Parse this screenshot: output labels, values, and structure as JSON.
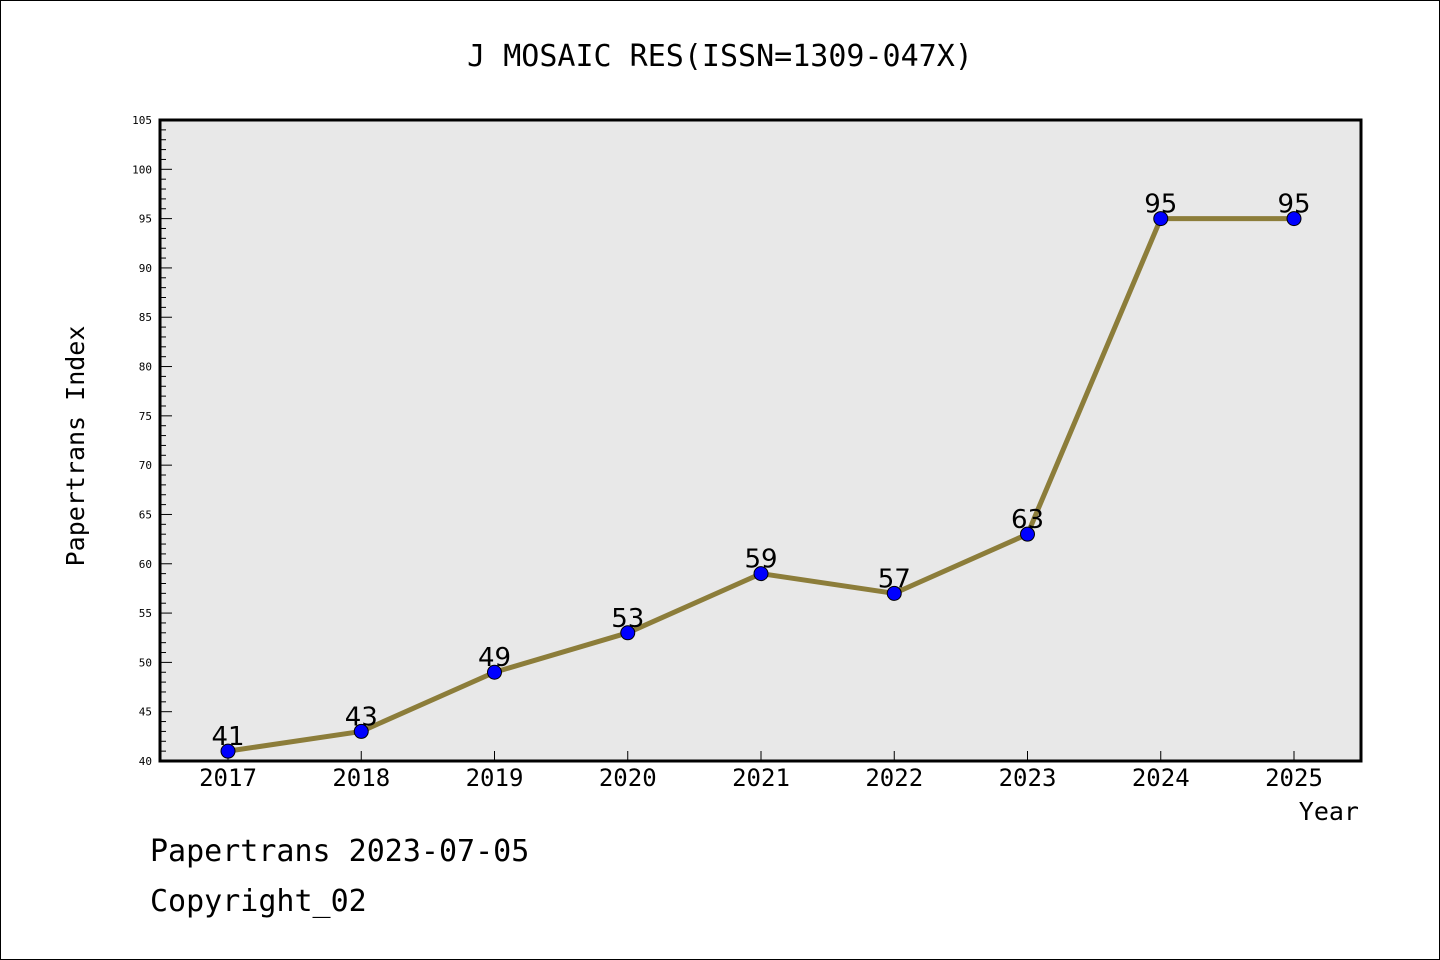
{
  "chart_data": {
    "type": "line",
    "title": "J MOSAIC RES(ISSN=1309-047X)",
    "xlabel": "Year",
    "ylabel": "Papertrans Index",
    "categories": [
      "2017",
      "2018",
      "2019",
      "2020",
      "2021",
      "2022",
      "2023",
      "2024",
      "2025"
    ],
    "values": [
      41,
      43,
      49,
      53,
      59,
      57,
      63,
      95,
      95
    ],
    "ylim": [
      40,
      105
    ],
    "yticks": [
      40,
      45,
      50,
      55,
      60,
      65,
      70,
      75,
      80,
      85,
      90,
      95,
      100,
      105
    ],
    "grid": false,
    "legend": "none",
    "line_color": "#8c7d3a",
    "marker_color": "#0000ff",
    "plot_background": "#e8e8e8"
  },
  "footer": {
    "line1": "Papertrans 2023-07-05",
    "line2": "Copyright_02"
  }
}
